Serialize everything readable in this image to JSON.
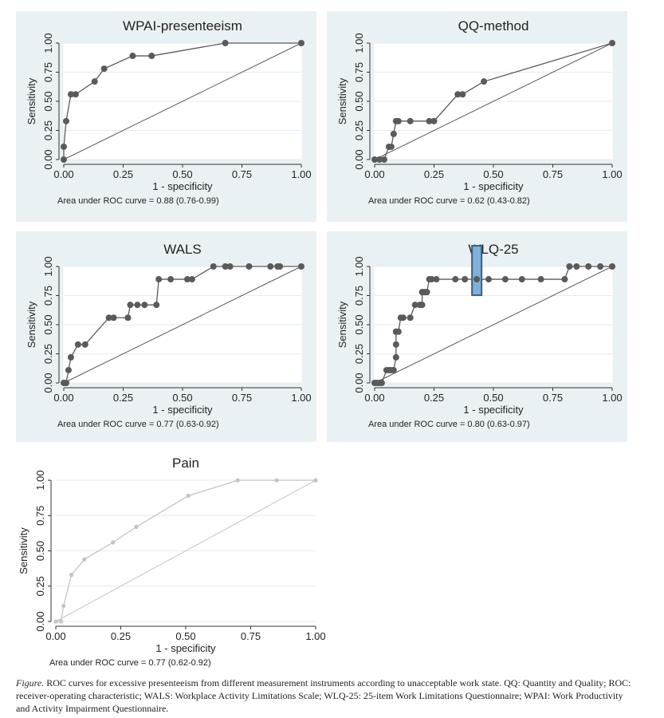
{
  "charts": [
    {
      "type": "line",
      "title": "WPAI-presenteeism",
      "xlabel": "1 - specificity",
      "ylabel": "Sensitivity",
      "xticks": [
        "0.00",
        "0.25",
        "0.50",
        "0.75",
        "1.00"
      ],
      "yticks": [
        "0.00",
        "0.25",
        "0.50",
        "0.75",
        "1.00"
      ],
      "xlim": [
        0,
        1
      ],
      "ylim": [
        0,
        1
      ],
      "auc_label": "Area under ROC curve = 0.88 (0.76-0.99)",
      "color": "#5a5a5a",
      "series": [
        {
          "x": [
            0,
            0,
            0.01,
            0.03,
            0.05,
            0.13,
            0.17,
            0.29,
            0.37,
            0.68,
            1.0
          ],
          "y": [
            0,
            0.11,
            0.33,
            0.56,
            0.56,
            0.67,
            0.78,
            0.89,
            0.89,
            1.0,
            1.0
          ]
        }
      ]
    },
    {
      "type": "line",
      "title": "QQ-method",
      "xlabel": "1 - specificity",
      "ylabel": "Sensitivity",
      "xticks": [
        "0.00",
        "0.25",
        "0.50",
        "0.75",
        "1.00"
      ],
      "yticks": [
        "0.00",
        "0.25",
        "0.50",
        "0.75",
        "1.00"
      ],
      "xlim": [
        0,
        1
      ],
      "ylim": [
        0,
        1
      ],
      "auc_label": "Area under ROC curve = 0.62 (0.43-0.82)",
      "color": "#5a5a5a",
      "series": [
        {
          "x": [
            0,
            0.02,
            0.04,
            0.06,
            0.07,
            0.08,
            0.09,
            0.1,
            0.15,
            0.23,
            0.25,
            0.35,
            0.37,
            0.46,
            1.0
          ],
          "y": [
            0,
            0,
            0,
            0.11,
            0.11,
            0.22,
            0.33,
            0.33,
            0.33,
            0.33,
            0.33,
            0.56,
            0.56,
            0.67,
            1.0
          ]
        }
      ]
    },
    {
      "type": "line",
      "title": "WALS",
      "xlabel": "1 - specificity",
      "ylabel": "Sensitivity",
      "xticks": [
        "0.00",
        "0.25",
        "0.50",
        "0.75",
        "1.00"
      ],
      "yticks": [
        "0.00",
        "0.25",
        "0.50",
        "0.75",
        "1.00"
      ],
      "xlim": [
        0,
        1
      ],
      "ylim": [
        0,
        1
      ],
      "auc_label": "Area under ROC curve = 0.77 (0.63-0.92)",
      "color": "#5a5a5a",
      "series": [
        {
          "x": [
            0,
            0.01,
            0.02,
            0.03,
            0.06,
            0.09,
            0.19,
            0.21,
            0.27,
            0.28,
            0.31,
            0.34,
            0.39,
            0.4,
            0.45,
            0.52,
            0.54,
            0.63,
            0.68,
            0.7,
            0.78,
            0.87,
            0.9,
            0.91,
            1.0
          ],
          "y": [
            0,
            0,
            0.11,
            0.22,
            0.33,
            0.33,
            0.56,
            0.56,
            0.56,
            0.67,
            0.67,
            0.67,
            0.67,
            0.89,
            0.89,
            0.89,
            0.89,
            1.0,
            1.0,
            1.0,
            1.0,
            1.0,
            1.0,
            1.0,
            1.0
          ]
        }
      ]
    },
    {
      "type": "line",
      "title": "WLQ-25",
      "xlabel": "1 - specificity",
      "ylabel": "Sensitivity",
      "xticks": [
        "0.00",
        "0.25",
        "0.50",
        "0.75",
        "1.00"
      ],
      "yticks": [
        "0.00",
        "0.25",
        "0.50",
        "0.75",
        "1.00"
      ],
      "xlim": [
        0,
        1
      ],
      "ylim": [
        0,
        1
      ],
      "auc_label": "Area under ROC curve = 0.80 (0.63-0.97)",
      "color": "#5a5a5a",
      "series": [
        {
          "x": [
            0,
            0.01,
            0.02,
            0.03,
            0.05,
            0.06,
            0.07,
            0.08,
            0.09,
            0.09,
            0.09,
            0.09,
            0.1,
            0.11,
            0.12,
            0.15,
            0.17,
            0.19,
            0.2,
            0.2,
            0.21,
            0.22,
            0.23,
            0.24,
            0.26,
            0.34,
            0.38,
            0.43,
            0.48,
            0.55,
            0.62,
            0.7,
            0.8,
            0.82,
            0.85,
            0.9,
            0.95,
            1.0
          ],
          "y": [
            0,
            0,
            0,
            0,
            0.11,
            0.11,
            0.11,
            0.11,
            0.22,
            0.33,
            0.44,
            0.44,
            0.44,
            0.56,
            0.56,
            0.56,
            0.67,
            0.67,
            0.67,
            0.78,
            0.78,
            0.78,
            0.89,
            0.89,
            0.89,
            0.89,
            0.89,
            0.89,
            0.89,
            0.89,
            0.89,
            0.89,
            0.89,
            1.0,
            1.0,
            1.0,
            1.0,
            1.0
          ]
        }
      ],
      "highlight": {
        "x": 0.43,
        "y": 0.89
      }
    },
    {
      "type": "line",
      "title": "Pain",
      "xlabel": "1 - specificity",
      "ylabel": "Sensitivity",
      "xticks": [
        "0.00",
        "0.25",
        "0.50",
        "0.75",
        "1.00"
      ],
      "yticks": [
        "0.00",
        "0.25",
        "0.50",
        "0.75",
        "1.00"
      ],
      "xlim": [
        0,
        1
      ],
      "ylim": [
        0,
        1
      ],
      "auc_label": "Area under ROC curve = 0.77 (0.62-0.92)",
      "color": "#c4c4c4",
      "series": [
        {
          "x": [
            0,
            0.02,
            0.03,
            0.06,
            0.11,
            0.22,
            0.31,
            0.51,
            0.7,
            0.85,
            1.0
          ],
          "y": [
            0,
            0,
            0.11,
            0.33,
            0.44,
            0.56,
            0.67,
            0.89,
            1.0,
            1.0,
            1.0
          ]
        }
      ]
    }
  ],
  "caption": {
    "lead": "Figure.",
    "text": " ROC curves for excessive presenteeism from different measurement instruments according to unacceptable work state. QQ: Quantity and Quality; ROC: receiver-operating characteristic; WALS: Workplace Activity Limitations Scale; WLQ-25: 25-item Work Limitations Questionnaire; WPAI: Work Productivity and Activity Impairment Questionnaire."
  },
  "highlight_color": "#7fb0d8"
}
